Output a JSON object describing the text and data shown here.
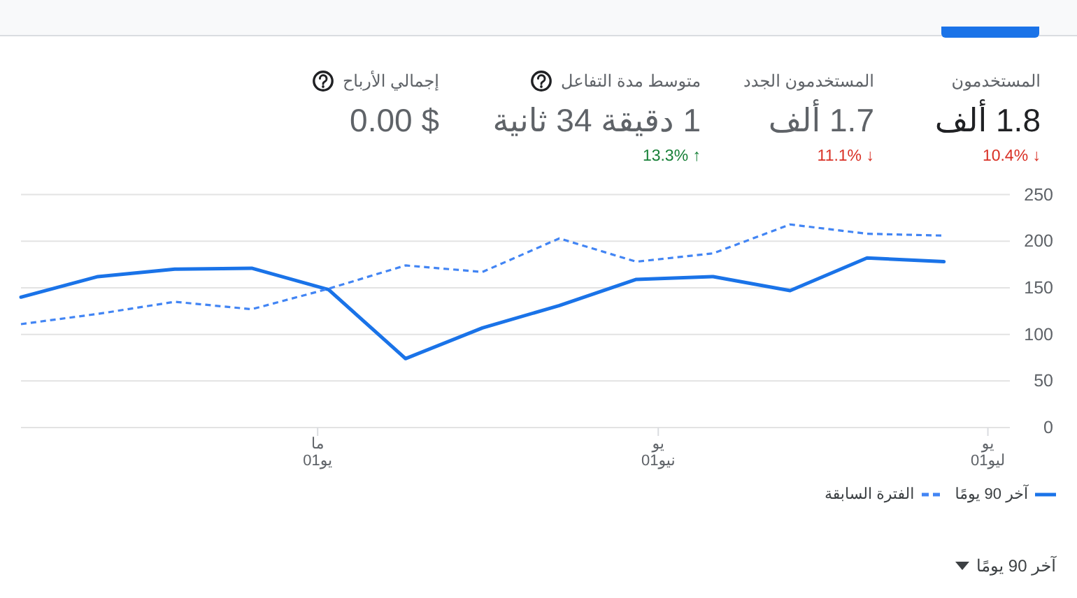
{
  "chart_data": [
    {
      "type": "other",
      "categories": [
        "المستخدمون",
        "المستخدمون الجدد",
        "متوسط مدة التفاعل",
        "إجمالي الأرباح"
      ],
      "value_labels": [
        "1.8 ألف",
        "1.7 ألف",
        "1 دقيقة 34 ثانية",
        "$ 0.00"
      ],
      "annotations": [
        "↓ 10.4%",
        "↓ 11.1%",
        "↑ 13.3%"
      ],
      "colors": [
        "#d93025",
        "#d93025",
        "#188038"
      ]
    },
    {
      "type": "line",
      "x": [
        "--04-04",
        "--04-11",
        "--04-18",
        "--04-25",
        "--05-02",
        "--05-09",
        "--05-16",
        "--05-23",
        "--05-30",
        "--06-06",
        "--06-13",
        "--06-20",
        "--06-27"
      ],
      "series": [
        {
          "name": "آخر 90 يومًا",
          "color": "#1a73e8",
          "line_style": "solid",
          "values": [
            140,
            162,
            170,
            171,
            148,
            74,
            107,
            131,
            159,
            162,
            147,
            182,
            178
          ]
        },
        {
          "name": "الفترة السابقة",
          "color": "#4285f4",
          "line_style": "dashed",
          "values": [
            111,
            122,
            135,
            127,
            149,
            174,
            167,
            203,
            178,
            187,
            218,
            208,
            206
          ]
        }
      ],
      "xlim": [
        "--04-04",
        "--07-03"
      ],
      "xticks": [
        {
          "value": "--05-01",
          "label": "ما\n01يو"
        },
        {
          "value": "--06-01",
          "label": "يو\n01نيو"
        },
        {
          "value": "--07-01",
          "label": "يو\n01ليو"
        }
      ],
      "ylim": [
        0,
        250
      ],
      "yticks": [
        0,
        50,
        100,
        150,
        200,
        250
      ],
      "grid": "y",
      "legend": "bottom right",
      "annotations": [
        "آخر 90 يومًا"
      ]
    }
  ]
}
